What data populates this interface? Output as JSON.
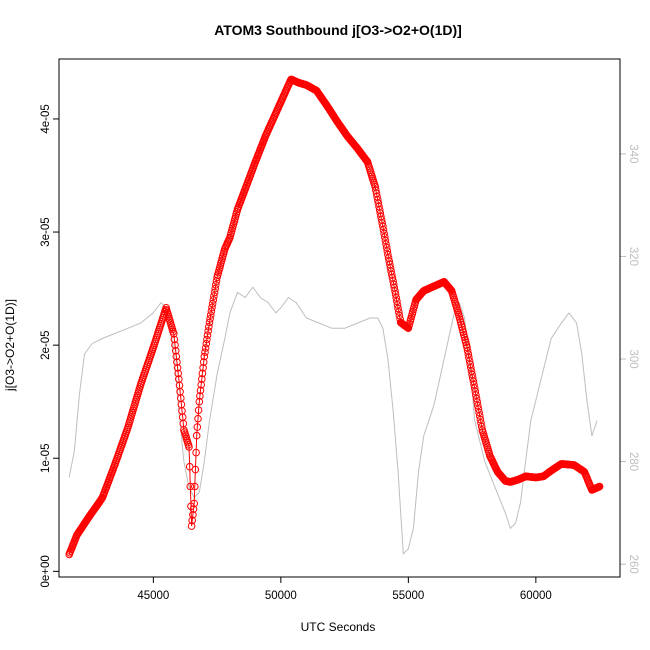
{
  "chart_data": {
    "type": "line",
    "title": "ATOM3 Southbound j[O3->O2+O(1D)]",
    "xlabel": "UTC Seconds",
    "ylabel": "j[O3->O2+O(1D)]",
    "xlim": [
      41300,
      63300
    ],
    "ylim": [
      -5e-07,
      4.53e-05
    ],
    "y2lim": [
      257.5,
      358.5
    ],
    "x_ticks": [
      45000,
      50000,
      55000,
      60000
    ],
    "x_tick_labels": [
      "45000",
      "50000",
      "55000",
      "60000"
    ],
    "y_ticks": [
      0,
      1e-05,
      2e-05,
      3e-05,
      4e-05
    ],
    "y_tick_labels": [
      "0e+00",
      "1e-05",
      "2e-05",
      "3e-05",
      "4e-05"
    ],
    "y2_ticks": [
      260,
      280,
      300,
      320,
      340
    ],
    "y2_tick_labels": [
      "260",
      "280",
      "300",
      "320",
      "340"
    ],
    "series": [
      {
        "role": "primary",
        "color": "#ff0000",
        "marker": "open-circle",
        "x": [
          41700,
          42000,
          42500,
          43000,
          43500,
          44000,
          44500,
          45000,
          45500,
          45800,
          46000,
          46200,
          46400,
          46500,
          46600,
          46700,
          46800,
          47000,
          47200,
          47500,
          47800,
          48000,
          48300,
          48600,
          49000,
          49400,
          49800,
          50200,
          50400,
          50700,
          51000,
          51400,
          51800,
          52200,
          52600,
          53000,
          53400,
          53700,
          54000,
          54200,
          54500,
          54700,
          55000,
          55300,
          55600,
          56000,
          56400,
          56700,
          57000,
          57300,
          57600,
          57900,
          58200,
          58500,
          58800,
          59000,
          59300,
          59600,
          60000,
          60300,
          60600,
          61000,
          61500,
          61900,
          62200,
          62500
        ],
        "y": [
          1.5e-06,
          3.2e-06,
          4.9e-06,
          6.5e-06,
          9.5e-06,
          1.27e-05,
          1.65e-05,
          1.98e-05,
          2.33e-05,
          2.1e-05,
          1.7e-05,
          1.25e-05,
          1.1e-05,
          4e-06,
          6e-06,
          1.2e-05,
          1.5e-05,
          1.9e-05,
          2.2e-05,
          2.6e-05,
          2.85e-05,
          2.95e-05,
          3.2e-05,
          3.38e-05,
          3.62e-05,
          3.85e-05,
          4.05e-05,
          4.25e-05,
          4.35e-05,
          4.32e-05,
          4.3e-05,
          4.25e-05,
          4.12e-05,
          3.98e-05,
          3.85e-05,
          3.74e-05,
          3.62e-05,
          3.4e-05,
          3.05e-05,
          2.8e-05,
          2.45e-05,
          2.2e-05,
          2.15e-05,
          2.4e-05,
          2.48e-05,
          2.52e-05,
          2.56e-05,
          2.48e-05,
          2.25e-05,
          1.98e-05,
          1.62e-05,
          1.25e-05,
          1.02e-05,
          8.8e-06,
          8e-06,
          7.9e-06,
          8.1e-06,
          8.4e-06,
          8.3e-06,
          8.4e-06,
          8.9e-06,
          9.5e-06,
          9.4e-06,
          8.8e-06,
          7.2e-06,
          7.5e-06
        ]
      },
      {
        "role": "secondary-axis",
        "color": "#bebebe",
        "x": [
          41700,
          41900,
          42100,
          42300,
          42600,
          43000,
          43500,
          44000,
          44500,
          45000,
          45300,
          45500,
          45800,
          46000,
          46200,
          46400,
          46600,
          46800,
          47000,
          47200,
          47500,
          47800,
          48000,
          48300,
          48600,
          48900,
          49200,
          49500,
          49800,
          50000,
          50300,
          50600,
          51000,
          51500,
          52000,
          52500,
          53000,
          53500,
          53800,
          54000,
          54200,
          54400,
          54600,
          54800,
          55000,
          55200,
          55400,
          55600,
          56000,
          56400,
          56800,
          57000,
          57200,
          57400,
          57600,
          58000,
          58400,
          58800,
          59000,
          59200,
          59400,
          59600,
          59800,
          60200,
          60600,
          61000,
          61300,
          61600,
          61800,
          62000,
          62200,
          62400
        ],
        "y": [
          277,
          282,
          293,
          301,
          303,
          304,
          305,
          306,
          307,
          309,
          311,
          310,
          302,
          290,
          280,
          275,
          273,
          274,
          280,
          288,
          297,
          304,
          309,
          313,
          312,
          314,
          312,
          311,
          309,
          310,
          312,
          311,
          308,
          307,
          306,
          306,
          307,
          308,
          308,
          306,
          300,
          290,
          278,
          262,
          263,
          267,
          278,
          285,
          291,
          300,
          309,
          311,
          308,
          300,
          288,
          280,
          275,
          270,
          267,
          268,
          272,
          280,
          288,
          296,
          304,
          307,
          309,
          307,
          301,
          292,
          285,
          288
        ]
      }
    ]
  }
}
